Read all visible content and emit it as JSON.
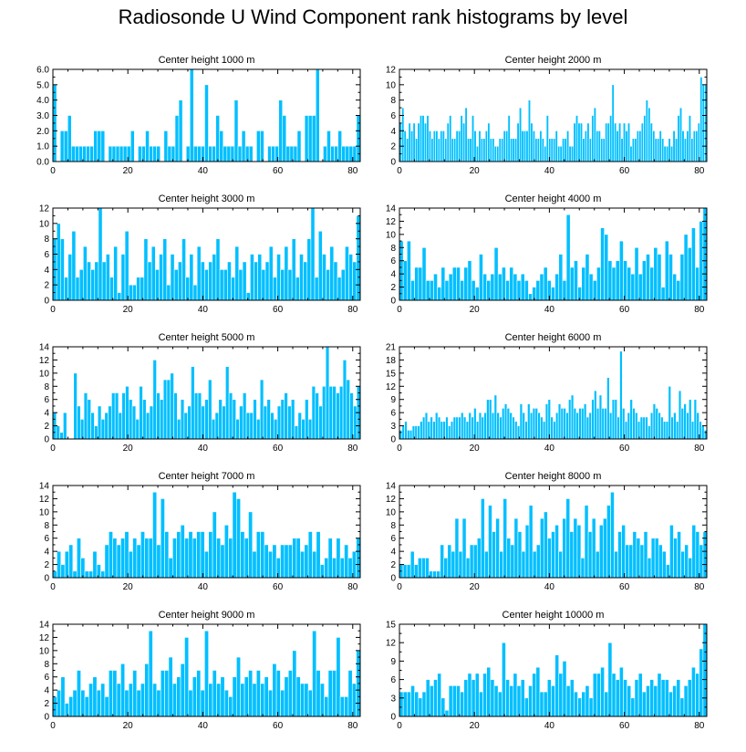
{
  "figure": {
    "title": "Radiosonde U Wind Component rank histograms by level"
  },
  "style": {
    "bar_color": "#00BFFF",
    "bar_edge": "#ffffff",
    "axis_color": "#000000"
  },
  "chart_data": [
    {
      "type": "bar",
      "title": "Center height 1000 m",
      "xlim": [
        0,
        82
      ],
      "ylim": [
        0,
        6
      ],
      "xticks": [
        0,
        20,
        40,
        60,
        80
      ],
      "yticks": [
        0,
        1,
        2,
        3,
        4,
        5,
        6
      ],
      "ytick_labels": [
        "0.0",
        "1.0",
        "2.0",
        "3.0",
        "4.0",
        "5.0",
        "6.0"
      ],
      "values": [
        5,
        0,
        2,
        2,
        3,
        1,
        1,
        1,
        1,
        1,
        1,
        2,
        2,
        2,
        0,
        1,
        1,
        1,
        1,
        1,
        1,
        2,
        0,
        1,
        1,
        2,
        1,
        1,
        1,
        0,
        2,
        1,
        1,
        3,
        4,
        0,
        1,
        6,
        1,
        1,
        1,
        5,
        1,
        1,
        3,
        2,
        1,
        1,
        1,
        4,
        1,
        2,
        1,
        1,
        0,
        2,
        2,
        0,
        1,
        1,
        1,
        4,
        3,
        1,
        1,
        1,
        2,
        0,
        3,
        3,
        3,
        6,
        0,
        1,
        2,
        1,
        1,
        2,
        1,
        1,
        1,
        1,
        3
      ]
    },
    {
      "type": "bar",
      "title": "Center height 2000 m",
      "xlim": [
        0,
        82
      ],
      "ylim": [
        0,
        12
      ],
      "xticks": [
        0,
        20,
        40,
        60,
        80
      ],
      "yticks": [
        0,
        2,
        4,
        6,
        8,
        10,
        12
      ],
      "ytick_labels": [
        "0",
        "2",
        "4",
        "6",
        "8",
        "10",
        "12"
      ],
      "values": [
        5,
        7,
        4,
        3,
        5,
        4,
        5,
        3,
        5,
        6,
        6,
        5,
        6,
        4,
        3,
        4,
        4,
        3,
        4,
        4,
        3,
        5,
        6,
        3,
        3,
        4,
        4,
        6,
        5,
        7,
        3,
        3,
        6,
        4,
        2,
        4,
        3,
        3,
        4,
        5,
        3,
        3,
        2,
        2,
        3,
        3,
        4,
        4,
        6,
        3,
        3,
        3,
        5,
        7,
        4,
        4,
        4,
        8,
        5,
        4,
        3,
        3,
        4,
        3,
        2,
        6,
        3,
        3,
        3,
        4,
        2,
        2,
        3,
        3,
        4,
        2,
        2,
        5,
        6,
        5,
        5,
        3,
        4,
        5,
        3,
        6,
        7,
        4,
        4,
        3,
        3,
        5,
        5,
        6,
        10,
        5,
        4,
        5,
        3,
        5,
        4,
        5,
        2,
        3,
        3,
        4,
        4,
        5,
        6,
        8,
        7,
        5,
        4,
        3,
        3,
        4,
        3,
        2,
        2,
        3,
        2,
        4,
        3,
        6,
        7,
        4,
        3,
        4,
        6,
        3,
        4,
        4,
        5,
        11,
        10,
        10
      ]
    },
    {
      "type": "bar",
      "title": "Center height 3000 m",
      "xlim": [
        0,
        82
      ],
      "ylim": [
        0,
        12
      ],
      "xticks": [
        0,
        20,
        40,
        60,
        80
      ],
      "yticks": [
        0,
        2,
        4,
        6,
        8,
        10,
        12
      ],
      "ytick_labels": [
        "0",
        "2",
        "4",
        "6",
        "8",
        "10",
        "12"
      ],
      "values": [
        8,
        10,
        8,
        3,
        6,
        9,
        3,
        4,
        7,
        5,
        4,
        5,
        12,
        5,
        6,
        3,
        7,
        1,
        6,
        9,
        2,
        2,
        3,
        3,
        8,
        5,
        7,
        4,
        6,
        8,
        2,
        6,
        4,
        5,
        8,
        3,
        6,
        2,
        7,
        5,
        4,
        5,
        6,
        8,
        4,
        4,
        5,
        3,
        7,
        4,
        5,
        1,
        6,
        5,
        6,
        4,
        5,
        7,
        3,
        6,
        4,
        7,
        4,
        8,
        3,
        6,
        5,
        8,
        12,
        3,
        9,
        6,
        4,
        7,
        5,
        3,
        4,
        7,
        6,
        5,
        11
      ]
    },
    {
      "type": "bar",
      "title": "Center height 4000 m",
      "xlim": [
        0,
        82
      ],
      "ylim": [
        0,
        14
      ],
      "xticks": [
        0,
        20,
        40,
        60,
        80
      ],
      "yticks": [
        0,
        2,
        4,
        6,
        8,
        10,
        12,
        14
      ],
      "ytick_labels": [
        "0",
        "2",
        "4",
        "6",
        "8",
        "10",
        "12",
        "14"
      ],
      "values": [
        9,
        6,
        9,
        3,
        5,
        5,
        8,
        3,
        3,
        4,
        2,
        5,
        3,
        4,
        5,
        5,
        3,
        5,
        6,
        3,
        2,
        7,
        4,
        3,
        4,
        8,
        4,
        5,
        3,
        5,
        4,
        3,
        4,
        3,
        1,
        2,
        3,
        4,
        5,
        3,
        2,
        4,
        7,
        3,
        13,
        5,
        6,
        2,
        5,
        7,
        4,
        3,
        5,
        11,
        10,
        6,
        5,
        6,
        9,
        6,
        5,
        4,
        8,
        4,
        6,
        7,
        5,
        8,
        7,
        2,
        9,
        7,
        4,
        3,
        7,
        10,
        8,
        11,
        5,
        12,
        14
      ]
    },
    {
      "type": "bar",
      "title": "Center height 5000 m",
      "xlim": [
        0,
        82
      ],
      "ylim": [
        0,
        14
      ],
      "xticks": [
        0,
        20,
        40,
        60,
        80
      ],
      "yticks": [
        0,
        2,
        4,
        6,
        8,
        10,
        12,
        14
      ],
      "ytick_labels": [
        "0",
        "2",
        "4",
        "6",
        "8",
        "10",
        "12",
        "14"
      ],
      "values": [
        4,
        2,
        1,
        4,
        0,
        0,
        10,
        5,
        3,
        7,
        6,
        4,
        2,
        5,
        3,
        4,
        5,
        7,
        7,
        4,
        7,
        8,
        6,
        5,
        3,
        8,
        6,
        4,
        5,
        12,
        7,
        6,
        9,
        9,
        10,
        7,
        3,
        6,
        4,
        5,
        11,
        7,
        7,
        5,
        6,
        9,
        3,
        4,
        6,
        5,
        11,
        7,
        6,
        3,
        5,
        7,
        4,
        4,
        6,
        3,
        9,
        5,
        6,
        4,
        3,
        5,
        6,
        7,
        5,
        6,
        2,
        4,
        3,
        6,
        3,
        8,
        7,
        5,
        8,
        14,
        8,
        8,
        7,
        8,
        12,
        9,
        7,
        5,
        8
      ]
    },
    {
      "type": "bar",
      "title": "Center height 6000 m",
      "xlim": [
        0,
        82
      ],
      "ylim": [
        0,
        21
      ],
      "xticks": [
        0,
        20,
        40,
        60,
        80
      ],
      "yticks": [
        0,
        3,
        6,
        9,
        12,
        15,
        18,
        21
      ],
      "ytick_labels": [
        "0",
        "3",
        "6",
        "9",
        "12",
        "15",
        "18",
        "21"
      ],
      "values": [
        2,
        3,
        4,
        2,
        2,
        3,
        3,
        3,
        4,
        5,
        6,
        4,
        5,
        4,
        6,
        5,
        4,
        4,
        5,
        3,
        4,
        5,
        5,
        5,
        6,
        5,
        4,
        6,
        5,
        7,
        4,
        6,
        5,
        6,
        9,
        9,
        6,
        10,
        6,
        5,
        7,
        8,
        7,
        6,
        5,
        4,
        3,
        8,
        6,
        4,
        8,
        6,
        7,
        7,
        6,
        5,
        4,
        8,
        9,
        5,
        4,
        6,
        8,
        7,
        7,
        6,
        9,
        10,
        7,
        6,
        7,
        7,
        8,
        5,
        6,
        9,
        11,
        7,
        10,
        7,
        7,
        14,
        6,
        9,
        9,
        5,
        20,
        7,
        4,
        6,
        9,
        7,
        6,
        4,
        5,
        5,
        5,
        3,
        6,
        8,
        7,
        6,
        5,
        4,
        4,
        12,
        5,
        6,
        4,
        11,
        7,
        8,
        6,
        9,
        4,
        9,
        6,
        4,
        3,
        2
      ]
    },
    {
      "type": "bar",
      "title": "Center height 7000 m",
      "xlim": [
        0,
        82
      ],
      "ylim": [
        0,
        14
      ],
      "xticks": [
        0,
        20,
        40,
        60,
        80
      ],
      "yticks": [
        0,
        2,
        4,
        6,
        8,
        10,
        12,
        14
      ],
      "ytick_labels": [
        "0",
        "2",
        "4",
        "6",
        "8",
        "10",
        "12",
        "14"
      ],
      "values": [
        1,
        4,
        2,
        4,
        5,
        1,
        6,
        3,
        1,
        1,
        4,
        2,
        1,
        5,
        7,
        6,
        5,
        6,
        7,
        4,
        6,
        5,
        7,
        6,
        6,
        13,
        5,
        12,
        7,
        3,
        6,
        7,
        8,
        6,
        7,
        6,
        7,
        7,
        4,
        7,
        10,
        6,
        5,
        8,
        6,
        13,
        12,
        7,
        6,
        10,
        4,
        7,
        7,
        5,
        4,
        5,
        3,
        5,
        5,
        5,
        6,
        6,
        4,
        5,
        7,
        4,
        7,
        2,
        3,
        6,
        3,
        6,
        3,
        5,
        3,
        4,
        6
      ]
    },
    {
      "type": "bar",
      "title": "Center height 8000 m",
      "xlim": [
        0,
        82
      ],
      "ylim": [
        0,
        14
      ],
      "xticks": [
        0,
        20,
        40,
        60,
        80
      ],
      "yticks": [
        0,
        2,
        4,
        6,
        8,
        10,
        12,
        14
      ],
      "ytick_labels": [
        "0",
        "2",
        "4",
        "6",
        "8",
        "10",
        "12",
        "14"
      ],
      "values": [
        2,
        2,
        2,
        4,
        2,
        3,
        3,
        3,
        1,
        1,
        1,
        5,
        3,
        5,
        4,
        9,
        4,
        9,
        3,
        5,
        5,
        6,
        12,
        4,
        11,
        7,
        9,
        4,
        12,
        6,
        5,
        9,
        7,
        4,
        8,
        11,
        4,
        5,
        9,
        10,
        6,
        7,
        8,
        4,
        9,
        12,
        7,
        9,
        8,
        3,
        11,
        7,
        9,
        4,
        8,
        9,
        11,
        13,
        4,
        7,
        8,
        5,
        5,
        7,
        6,
        5,
        7,
        3,
        6,
        6,
        5,
        4,
        2,
        8,
        6,
        7,
        4,
        5,
        3,
        8,
        7,
        5,
        7
      ]
    },
    {
      "type": "bar",
      "title": "Center height 9000 m",
      "xlim": [
        0,
        82
      ],
      "ylim": [
        0,
        14
      ],
      "xticks": [
        0,
        20,
        40,
        60,
        80
      ],
      "yticks": [
        0,
        2,
        4,
        6,
        8,
        10,
        12,
        14
      ],
      "ytick_labels": [
        "0",
        "2",
        "4",
        "6",
        "8",
        "10",
        "12",
        "14"
      ],
      "values": [
        3,
        4,
        6,
        2,
        3,
        4,
        7,
        4,
        3,
        5,
        6,
        4,
        5,
        3,
        7,
        7,
        5,
        8,
        4,
        5,
        7,
        4,
        5,
        8,
        13,
        5,
        4,
        7,
        7,
        9,
        5,
        6,
        8,
        12,
        4,
        6,
        7,
        4,
        13,
        5,
        7,
        5,
        6,
        4,
        3,
        6,
        9,
        5,
        6,
        7,
        5,
        7,
        5,
        6,
        4,
        8,
        7,
        4,
        6,
        7,
        10,
        6,
        5,
        5,
        4,
        13,
        7,
        5,
        3,
        7,
        7,
        12,
        3,
        3,
        7,
        5,
        10
      ]
    },
    {
      "type": "bar",
      "title": "Center height 10000 m",
      "xlim": [
        0,
        82
      ],
      "ylim": [
        0,
        15
      ],
      "xticks": [
        0,
        20,
        40,
        60,
        80
      ],
      "yticks": [
        0,
        3,
        6,
        9,
        12,
        15
      ],
      "ytick_labels": [
        "0",
        "3",
        "6",
        "9",
        "12",
        "15"
      ],
      "values": [
        4,
        4,
        4,
        5,
        4,
        3,
        4,
        6,
        5,
        6,
        7,
        3,
        1,
        5,
        5,
        5,
        4,
        6,
        7,
        6,
        7,
        4,
        7,
        8,
        6,
        5,
        4,
        12,
        6,
        5,
        7,
        5,
        6,
        3,
        5,
        7,
        8,
        4,
        4,
        6,
        5,
        10,
        7,
        9,
        5,
        6,
        4,
        3,
        4,
        5,
        3,
        7,
        7,
        8,
        4,
        12,
        7,
        6,
        8,
        6,
        5,
        3,
        6,
        7,
        4,
        5,
        6,
        5,
        7,
        6,
        6,
        4,
        5,
        6,
        3,
        5,
        6,
        8,
        7,
        11,
        15
      ]
    }
  ]
}
